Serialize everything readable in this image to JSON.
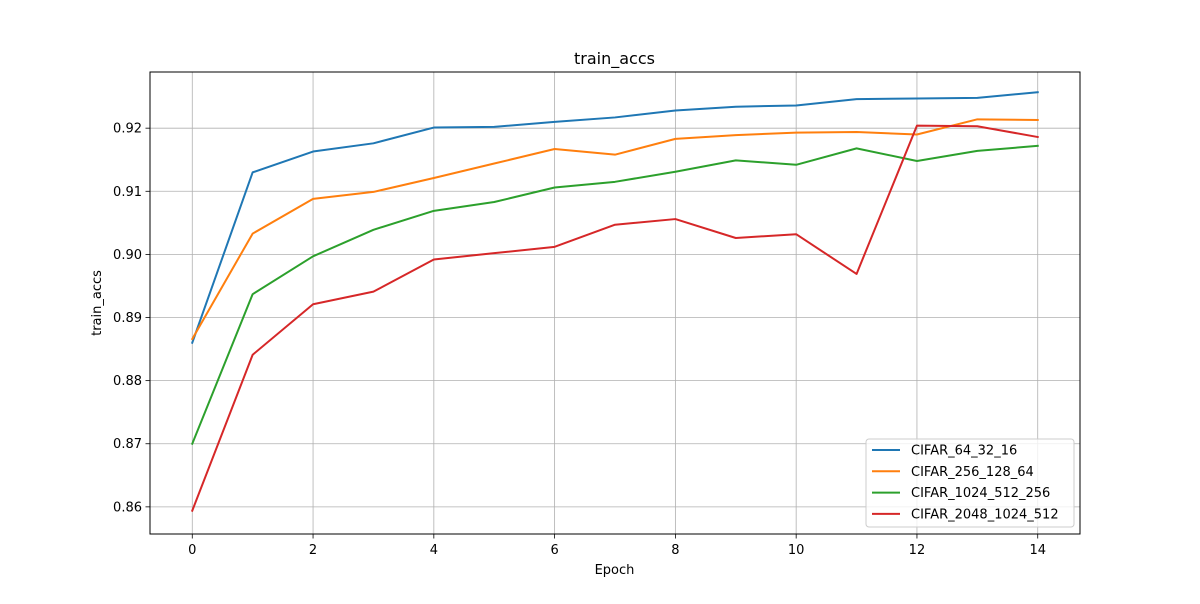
{
  "chart_data": {
    "type": "line",
    "title": "train_accs",
    "xlabel": "Epoch",
    "ylabel": "train_accs",
    "xlim": [
      -0.7,
      14.7
    ],
    "ylim": [
      0.8557,
      0.9289
    ],
    "xticks": [
      0,
      2,
      4,
      6,
      8,
      10,
      12,
      14
    ],
    "xtick_labels": [
      "0",
      "2",
      "4",
      "6",
      "8",
      "10",
      "12",
      "14"
    ],
    "yticks": [
      0.86,
      0.87,
      0.88,
      0.89,
      0.9,
      0.91,
      0.92
    ],
    "ytick_labels": [
      "0.86",
      "0.87",
      "0.88",
      "0.89",
      "0.90",
      "0.91",
      "0.92"
    ],
    "grid": true,
    "legend_position": "lower-right",
    "x": [
      0,
      1,
      2,
      3,
      4,
      5,
      6,
      7,
      8,
      9,
      10,
      11,
      12,
      13,
      14
    ],
    "series": [
      {
        "name": "CIFAR_64_32_16",
        "color": "#1f77b4",
        "values": [
          0.886,
          0.913,
          0.9163,
          0.9176,
          0.9201,
          0.9202,
          0.921,
          0.9217,
          0.9228,
          0.9234,
          0.9236,
          0.9246,
          0.9247,
          0.9248,
          0.9257
        ]
      },
      {
        "name": "CIFAR_256_128_64",
        "color": "#ff7f0e",
        "values": [
          0.8866,
          0.9033,
          0.9088,
          0.9099,
          0.9121,
          0.9144,
          0.9167,
          0.9158,
          0.9183,
          0.9189,
          0.9193,
          0.9194,
          0.919,
          0.9214,
          0.9213
        ]
      },
      {
        "name": "CIFAR_1024_512_256",
        "color": "#2ca02c",
        "values": [
          0.87,
          0.8937,
          0.8997,
          0.9039,
          0.9069,
          0.9083,
          0.9106,
          0.9115,
          0.9131,
          0.9149,
          0.9142,
          0.9168,
          0.9148,
          0.9164,
          0.9172
        ]
      },
      {
        "name": "CIFAR_2048_1024_512",
        "color": "#d62728",
        "values": [
          0.8594,
          0.8841,
          0.8921,
          0.8941,
          0.8992,
          0.9002,
          0.9012,
          0.9047,
          0.9056,
          0.9026,
          0.9032,
          0.8969,
          0.9204,
          0.9203,
          0.9186
        ]
      }
    ]
  }
}
